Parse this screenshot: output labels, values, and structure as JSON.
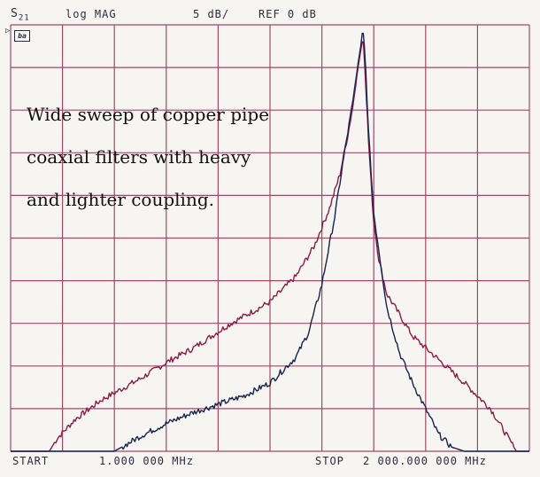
{
  "header": {
    "parameter": "S",
    "parameter_sub": "21",
    "format": "log MAG",
    "scale": "5 dB/",
    "reference": "REF 0 dB",
    "channel_badge": "ba"
  },
  "annotation": {
    "lines": [
      "Wide sweep of copper pipe",
      "coaxial filters with heavy",
      "and lighter coupling."
    ]
  },
  "footer": {
    "start_label": "START",
    "start_value": "1.000 000 MHz",
    "stop_label": "STOP",
    "stop_value": "2 000.000 000 MHz"
  },
  "colors": {
    "grid": "#a04a6a",
    "trace_heavy": "#8a1c48",
    "trace_light": "#16244e",
    "background": "#f6f5f1"
  },
  "chart_data": {
    "type": "line",
    "title": "",
    "xlabel": "",
    "ylabel": "",
    "x_unit": "MHz",
    "y_unit": "dB",
    "xlim": [
      1,
      2000
    ],
    "ylim": [
      -95,
      5
    ],
    "grid": true,
    "x_divisions": 10,
    "y_divisions": 10,
    "series": [
      {
        "x": [
          1,
          150,
          180,
          250,
          350,
          500,
          620,
          700,
          850,
          1000,
          1100,
          1170,
          1230,
          1270,
          1300,
          1320,
          1330,
          1340,
          1350,
          1356,
          1360,
          1362,
          1366,
          1372,
          1380,
          1390,
          1400,
          1420,
          1450,
          1500,
          1550,
          1650,
          1750,
          1850,
          1900,
          1950,
          2000
        ],
        "values": [
          -95,
          -95,
          -92,
          -87.5,
          -83,
          -78,
          -73.5,
          -71,
          -65,
          -60,
          -54,
          -47,
          -38,
          -30,
          -21,
          -14,
          -9,
          -5,
          -1,
          1,
          1,
          -1,
          -5,
          -12,
          -22,
          -32,
          -41,
          -50,
          -58,
          -63,
          -68,
          -73.5,
          -79,
          -85,
          -90,
          -95,
          -95
        ]
      },
      {
        "x": [
          1,
          400,
          430,
          500,
          600,
          700,
          800,
          900,
          1000,
          1100,
          1150,
          1200,
          1250,
          1290,
          1320,
          1340,
          1350,
          1356,
          1360,
          1364,
          1370,
          1380,
          1400,
          1450,
          1500,
          1550,
          1600,
          1650,
          1700,
          1750,
          2000
        ],
        "values": [
          -95,
          -95,
          -94,
          -91.5,
          -88.5,
          -86,
          -84,
          -82,
          -79,
          -73,
          -67,
          -56,
          -40,
          -24,
          -13,
          -4,
          0,
          3,
          3,
          0,
          -6,
          -20,
          -39,
          -61,
          -72,
          -79,
          -85,
          -91,
          -94,
          -95,
          -95
        ]
      }
    ]
  }
}
